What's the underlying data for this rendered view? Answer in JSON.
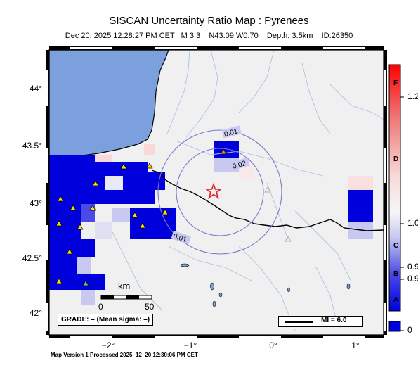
{
  "header": {
    "title": "SISCAN Uncertainty Ratio Map : Pyrenees",
    "subtitle": "Dec 20, 2025 12:28:27 PM CET   M 3.3    N43.09 W0.70    Depth: 3.5km    ID:26350"
  },
  "axes": {
    "y_ticks": [
      "44°",
      "43.5°",
      "43°",
      "42.5°",
      "42°"
    ],
    "x_ticks": [
      "−2°",
      "−1°",
      "0°",
      "1°"
    ]
  },
  "contours": {
    "labels": [
      "0.01",
      "0.02",
      "0.01"
    ]
  },
  "scale_bar": {
    "unit": "km",
    "start": "0",
    "end": "50"
  },
  "grade_box": {
    "text": "GRADE: – (Mean sigma: –)"
  },
  "mi_legend": {
    "text": "MI = 6.0"
  },
  "colorbar": {
    "values": [
      "1.2",
      "1.0",
      "0.9",
      "0.9",
      "0"
    ],
    "grades": [
      "F",
      "D",
      "C",
      "B",
      "A"
    ]
  },
  "footer": {
    "text": "Map Version 1 Processed 2025–12–20 12:30:06 PM CET"
  },
  "colors": {
    "sea": "#7ba0dd",
    "land": "#f0f0f0",
    "low_ratio": "#0000dd",
    "high_ratio": "#ff0000",
    "epicenter": "#dd2222"
  }
}
